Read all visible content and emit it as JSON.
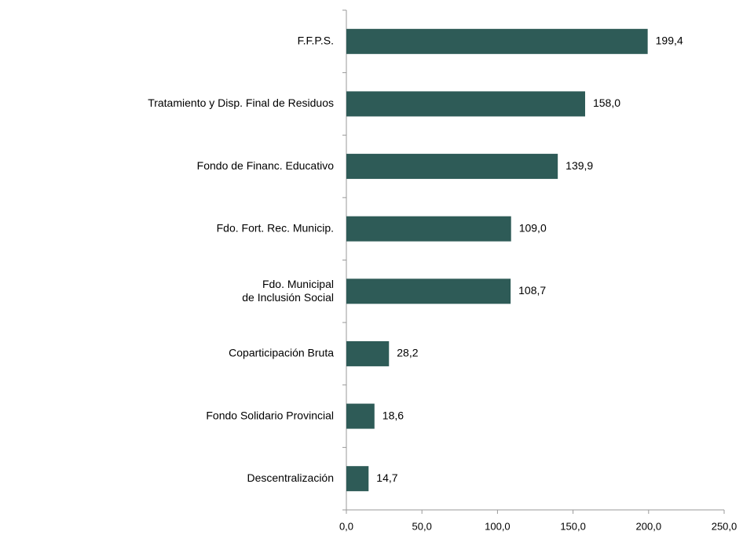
{
  "chart_data": {
    "type": "bar",
    "orientation": "horizontal",
    "categories": [
      "F.F.P.S.",
      "Tratamiento y Disp. Final de Residuos",
      "Fondo de Financ. Educativo",
      "Fdo. Fort. Rec. Municip.",
      "Fdo. Municipal\nde Inclusión Social",
      "Coparticipación Bruta",
      "Fondo Solidario Provincial",
      "Descentralización"
    ],
    "values": [
      199.4,
      158.0,
      139.9,
      109.0,
      108.7,
      28.2,
      18.6,
      14.7
    ],
    "value_labels": [
      "199,4",
      "158,0",
      "139,9",
      "109,0",
      "108,7",
      "28,2",
      "18,6",
      "14,7"
    ],
    "color": "#2e5b57",
    "xlim": [
      0,
      250
    ],
    "xticks": [
      {
        "value": 0,
        "label": "0,0"
      },
      {
        "value": 50,
        "label": "50,0"
      },
      {
        "value": 100,
        "label": "100,0"
      },
      {
        "value": 150,
        "label": "150,0"
      },
      {
        "value": 200,
        "label": "200,0"
      },
      {
        "value": 250,
        "label": "250,0"
      }
    ],
    "grid": false
  }
}
